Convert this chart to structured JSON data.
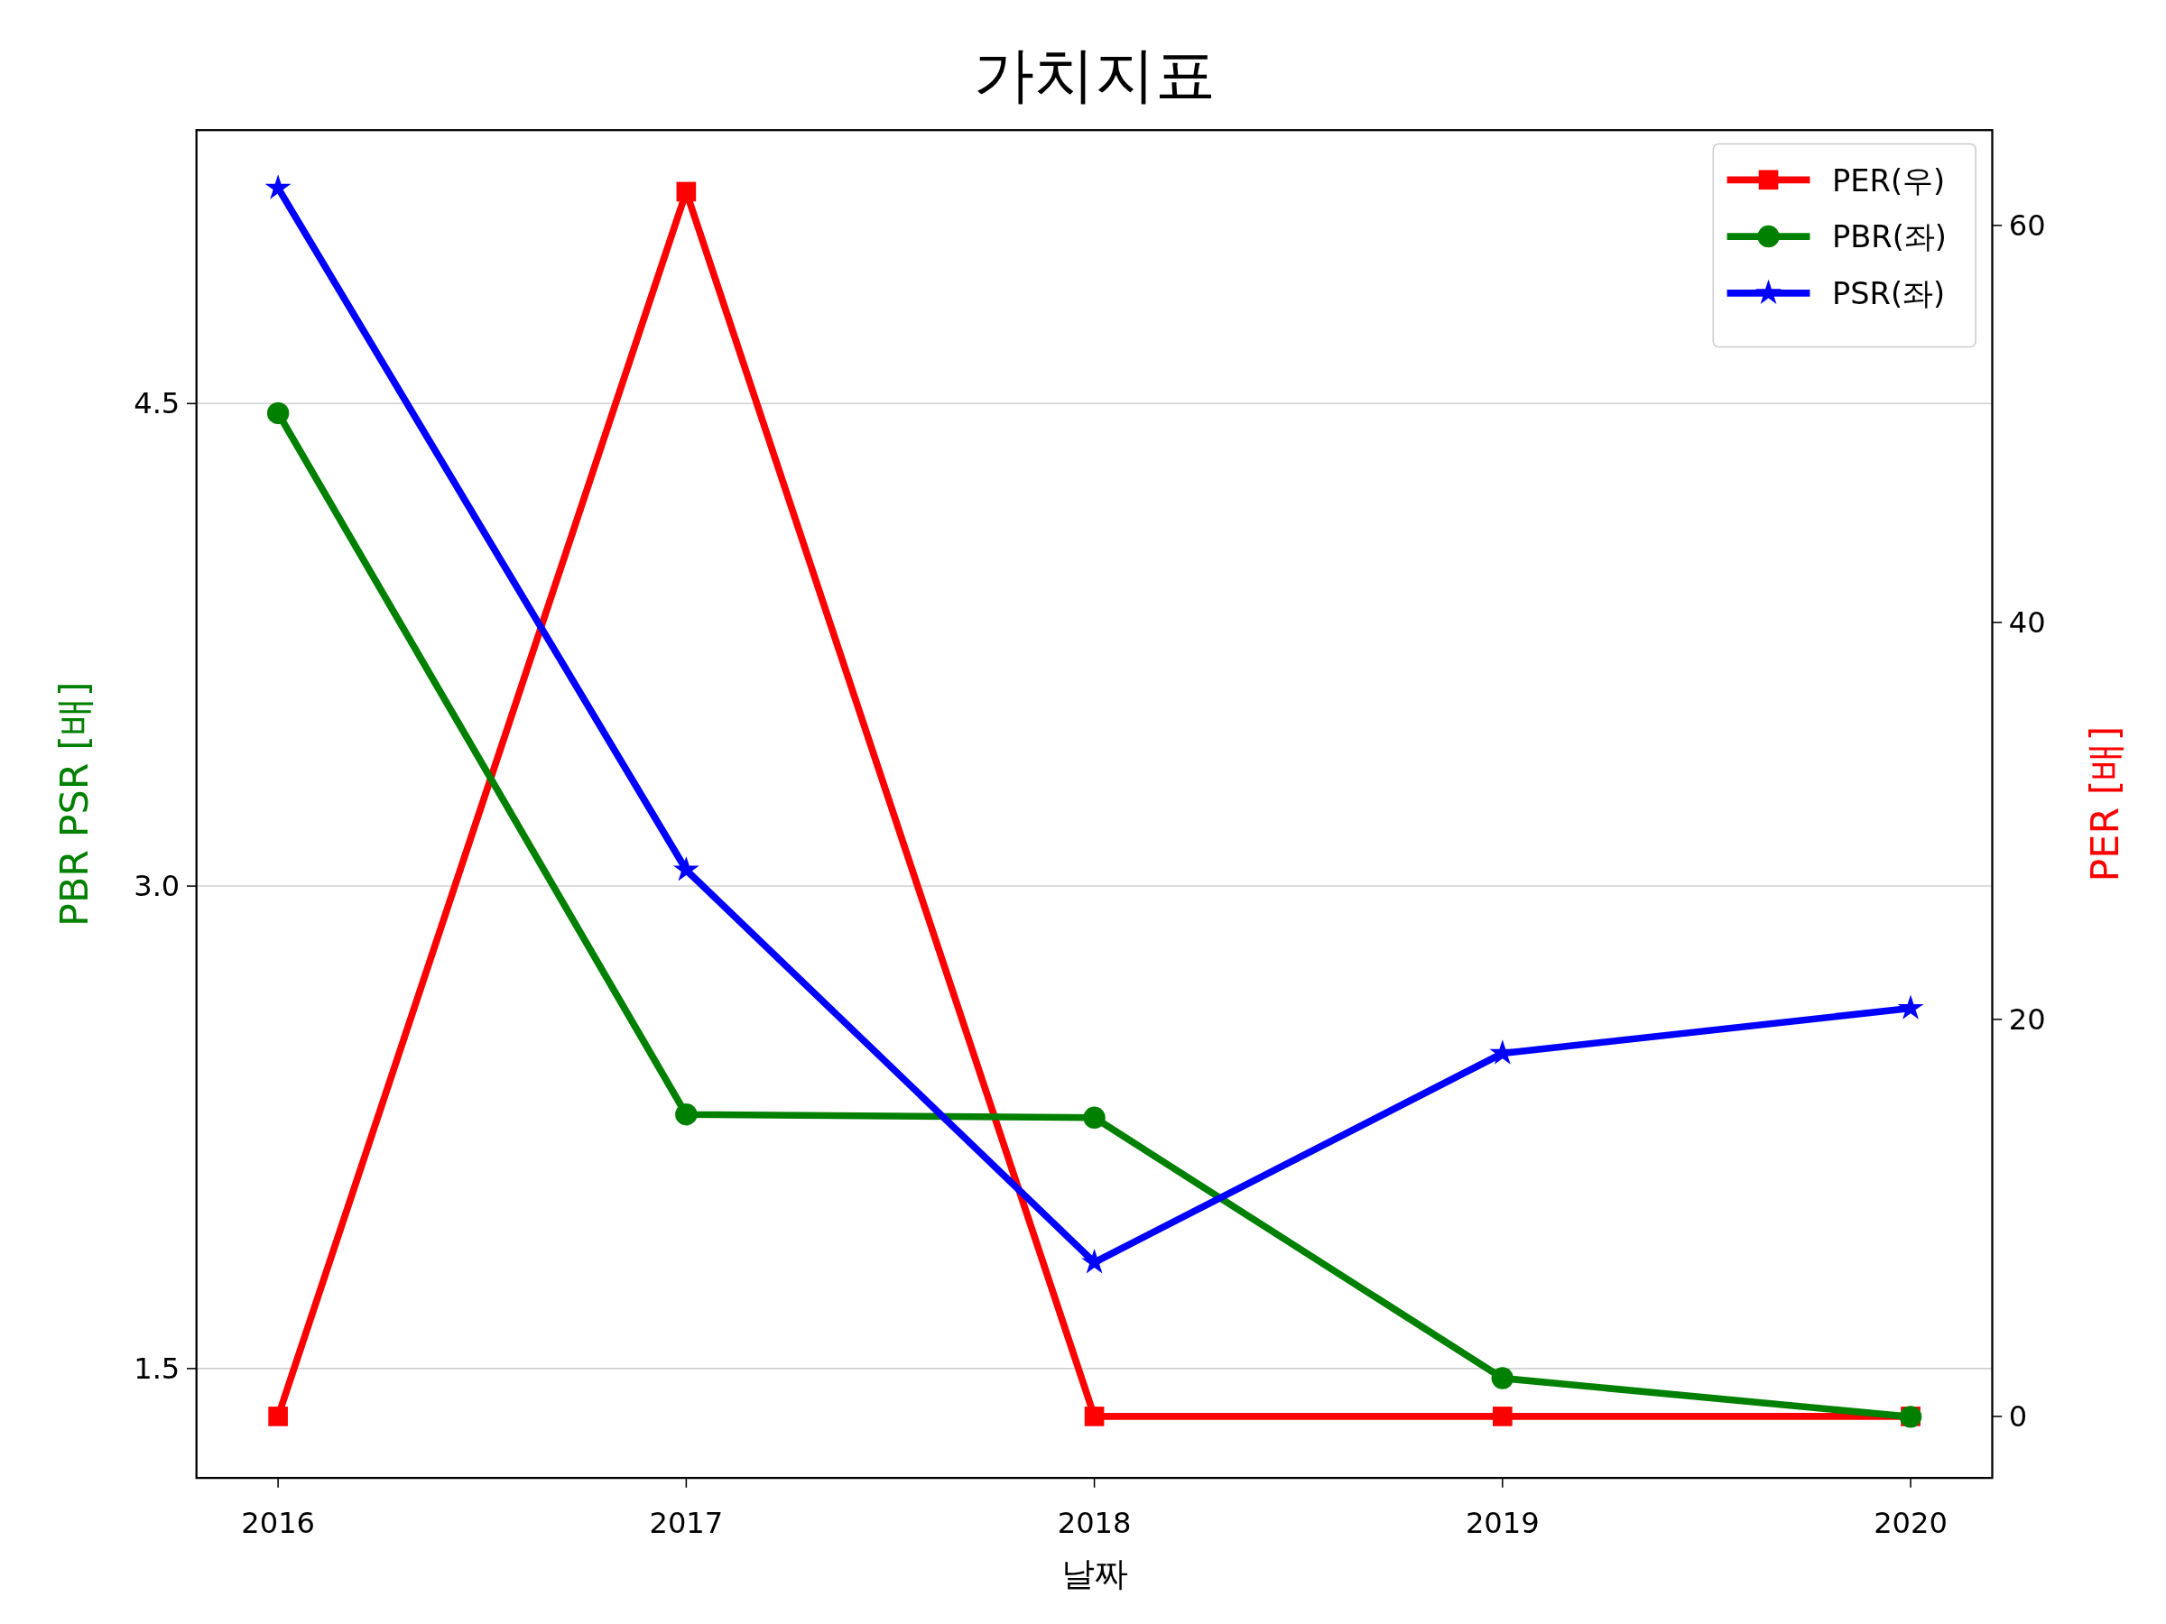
{
  "chart_data": {
    "type": "line",
    "title": "가치지표",
    "xlabel": "날짜",
    "ylabel": "PBR PSR [배]",
    "y2label": "PER [배]",
    "x": [
      2016,
      2017,
      2018,
      2019,
      2020
    ],
    "xlim": [
      2015.8,
      2020.2
    ],
    "xticks": [
      2016,
      2017,
      2018,
      2019,
      2020
    ],
    "ylim": [
      1.16,
      5.35
    ],
    "yticks": [
      {
        "value": 1.5,
        "label": "1.5"
      },
      {
        "value": 3,
        "label": "3.0"
      },
      {
        "value": 4.5,
        "label": "4.5"
      }
    ],
    "y2lim": [
      -3.1,
      64.8
    ],
    "y2ticks": [
      0,
      20,
      40,
      60
    ],
    "series": [
      {
        "name": "PER(우)",
        "color": "#ff0000",
        "axis": "y2",
        "marker": "square",
        "values": [
          0,
          61.7,
          0,
          0,
          0
        ]
      },
      {
        "name": "PBR(좌)",
        "color": "#008000",
        "marker": "circle",
        "values": [
          4.47,
          2.29,
          2.28,
          1.47,
          1.35
        ]
      },
      {
        "name": "PSR(좌)",
        "color": "#0000ff",
        "marker": "star",
        "values": [
          5.17,
          3.05,
          1.83,
          2.48,
          2.62
        ]
      }
    ],
    "grid": "y",
    "legend": "top right",
    "line_style": "solid"
  }
}
